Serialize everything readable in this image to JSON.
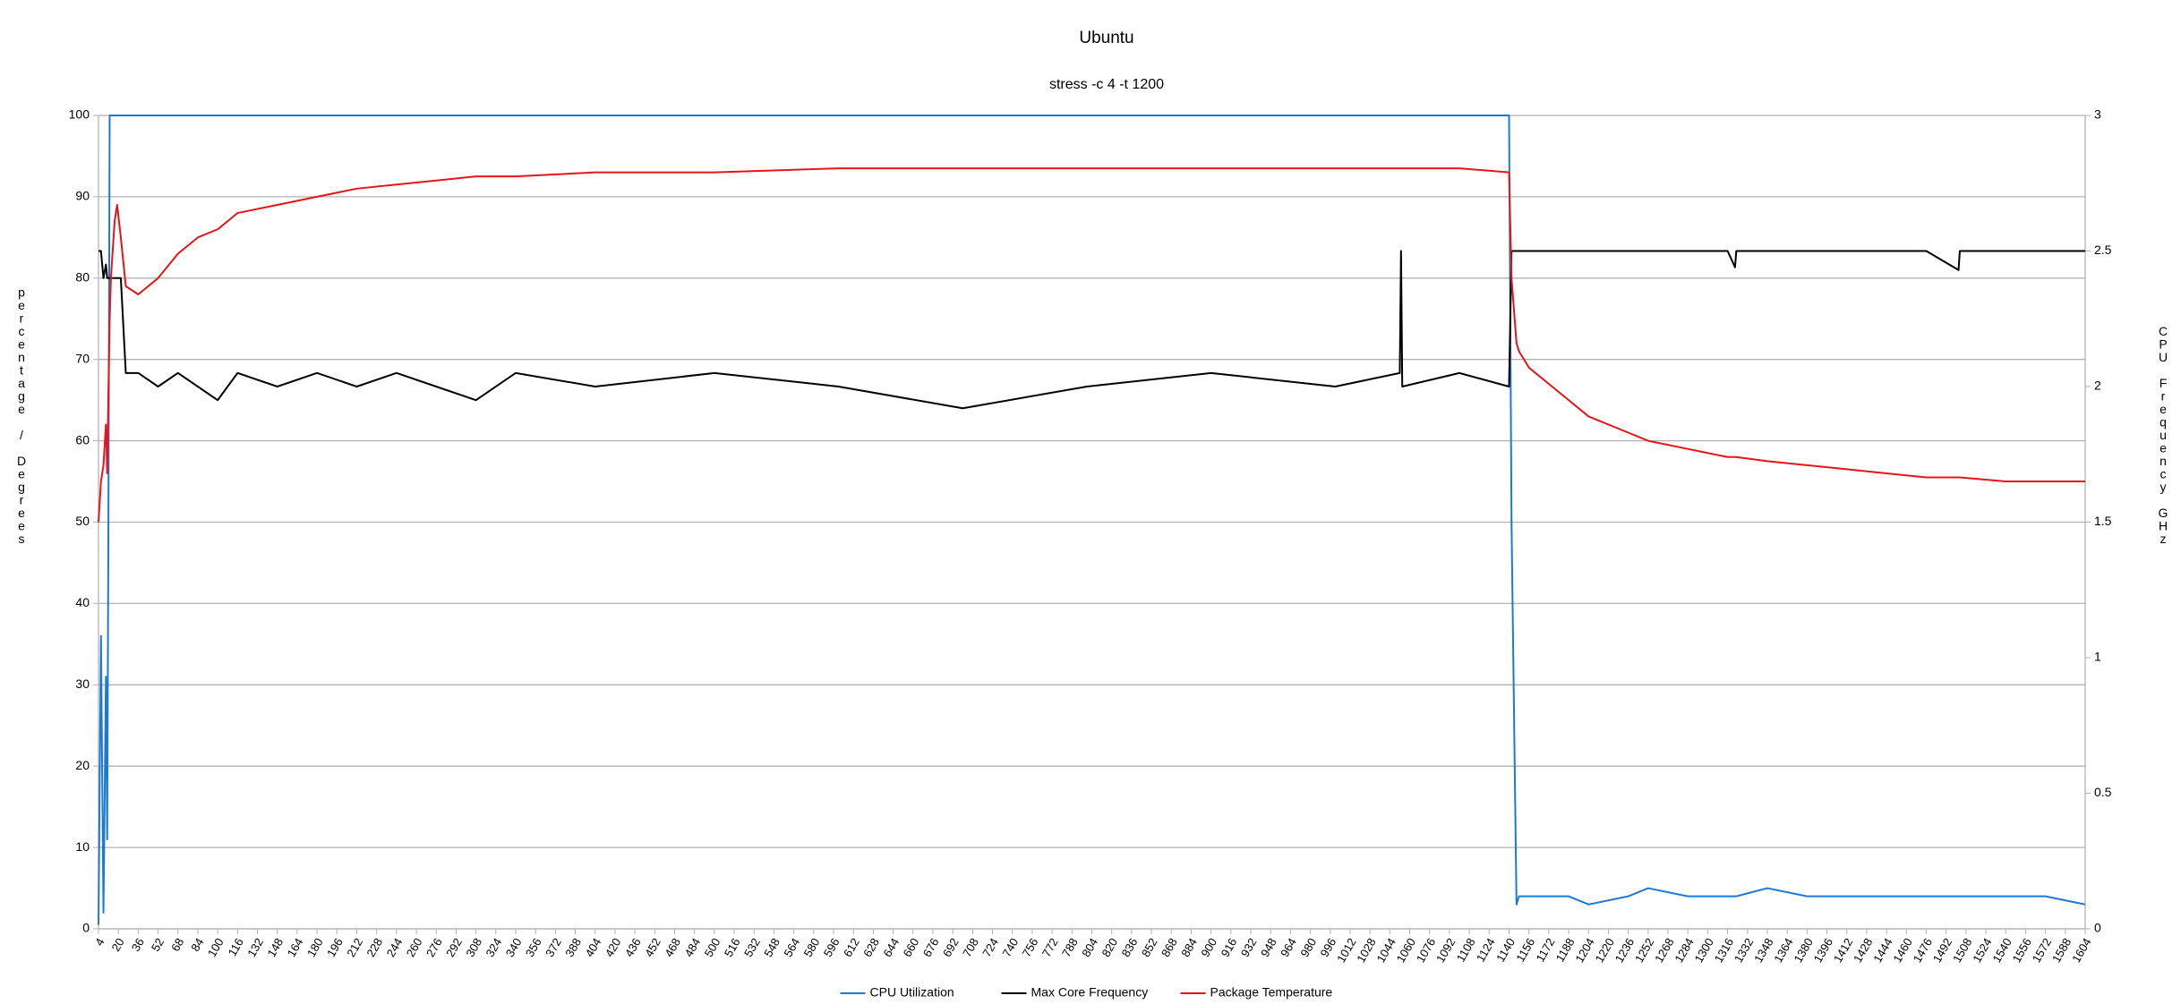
{
  "chart_data": {
    "type": "line",
    "title": "Ubuntu",
    "subtitle": "stress -c 4 -t 1200",
    "y_label": "percentage / Degrees",
    "y2_label": "CPU Frequency GHz",
    "x": [
      4,
      6,
      8,
      10,
      11,
      12,
      13,
      14,
      17,
      19,
      22,
      26,
      36,
      52,
      68,
      84,
      100,
      116,
      148,
      180,
      212,
      244,
      276,
      308,
      340,
      404,
      500,
      600,
      700,
      800,
      900,
      1000,
      1052,
      1053,
      1054,
      1100,
      1140,
      1142,
      1146,
      1148,
      1156,
      1172,
      1188,
      1204,
      1236,
      1252,
      1284,
      1316,
      1322,
      1323,
      1348,
      1380,
      1412,
      1444,
      1476,
      1502,
      1503,
      1540,
      1572,
      1604
    ],
    "xlim": [
      4,
      1604
    ],
    "xticks": [
      4,
      20,
      36,
      52,
      68,
      84,
      100,
      116,
      132,
      148,
      164,
      180,
      196,
      212,
      228,
      244,
      260,
      276,
      292,
      308,
      324,
      340,
      356,
      372,
      388,
      404,
      420,
      436,
      452,
      468,
      484,
      500,
      516,
      532,
      548,
      564,
      580,
      596,
      612,
      628,
      644,
      660,
      676,
      692,
      708,
      724,
      740,
      756,
      772,
      788,
      804,
      820,
      836,
      852,
      868,
      884,
      900,
      916,
      932,
      948,
      964,
      980,
      996,
      1012,
      1028,
      1044,
      1060,
      1076,
      1092,
      1108,
      1124,
      1140,
      1156,
      1172,
      1188,
      1204,
      1220,
      1236,
      1252,
      1268,
      1284,
      1300,
      1316,
      1332,
      1348,
      1364,
      1380,
      1396,
      1412,
      1428,
      1444,
      1460,
      1476,
      1492,
      1508,
      1524,
      1540,
      1556,
      1572,
      1588,
      1604
    ],
    "ylim": [
      0,
      100
    ],
    "yticks": [
      0,
      10,
      20,
      30,
      40,
      50,
      60,
      70,
      80,
      90,
      100
    ],
    "y2lim": [
      0,
      3
    ],
    "y2ticks": [
      0,
      0.5,
      1,
      1.5,
      2,
      2.5,
      3
    ],
    "grid": true,
    "legend": "bottom",
    "series": [
      {
        "name": "CPU Utilization",
        "color": "#1c7ad6",
        "values": [
          0.5,
          36,
          2,
          31,
          11,
          50,
          100,
          100,
          100,
          100,
          100,
          100,
          100,
          100,
          100,
          100,
          100,
          100,
          100,
          100,
          100,
          100,
          100,
          100,
          100,
          100,
          100,
          100,
          100,
          100,
          100,
          100,
          100,
          100,
          100,
          100,
          100,
          50,
          3,
          4,
          4,
          4,
          4,
          3,
          4,
          5,
          4,
          4,
          4,
          4,
          5,
          4,
          4,
          4,
          4,
          4,
          4,
          4,
          4,
          3
        ]
      },
      {
        "name": "Max Core Frequency",
        "color": "#000000",
        "axis": "y2",
        "values": [
          2.5,
          2.5,
          2.4,
          2.45,
          2.4,
          2.4,
          2.4,
          2.4,
          2.4,
          2.4,
          2.4,
          2.05,
          2.05,
          2.0,
          2.05,
          2.0,
          1.95,
          2.05,
          2.0,
          2.05,
          2.0,
          2.05,
          2.0,
          1.95,
          2.05,
          2.0,
          2.05,
          2.0,
          1.92,
          2.0,
          2.05,
          2.0,
          2.05,
          2.5,
          2.0,
          2.05,
          2.0,
          2.5,
          2.5,
          2.5,
          2.5,
          2.5,
          2.5,
          2.5,
          2.5,
          2.5,
          2.5,
          2.5,
          2.44,
          2.5,
          2.5,
          2.5,
          2.5,
          2.5,
          2.5,
          2.43,
          2.5,
          2.5,
          2.5,
          2.5
        ]
      },
      {
        "name": "Package Temperature",
        "color": "#e8141a",
        "values": [
          50,
          55,
          57,
          62,
          56,
          66,
          75,
          80,
          87,
          89,
          85,
          79,
          78,
          80,
          83,
          85,
          86,
          88,
          89,
          90,
          91,
          91.5,
          92,
          92.5,
          92.5,
          93,
          93,
          93.5,
          93.5,
          93.5,
          93.5,
          93.5,
          93.5,
          93.5,
          93.5,
          93.5,
          93,
          80,
          72,
          71,
          69,
          67,
          65,
          63,
          61,
          60,
          59,
          58,
          58,
          58,
          57.5,
          57,
          56.5,
          56,
          55.5,
          55.5,
          55.5,
          55,
          55,
          55
        ]
      }
    ]
  }
}
